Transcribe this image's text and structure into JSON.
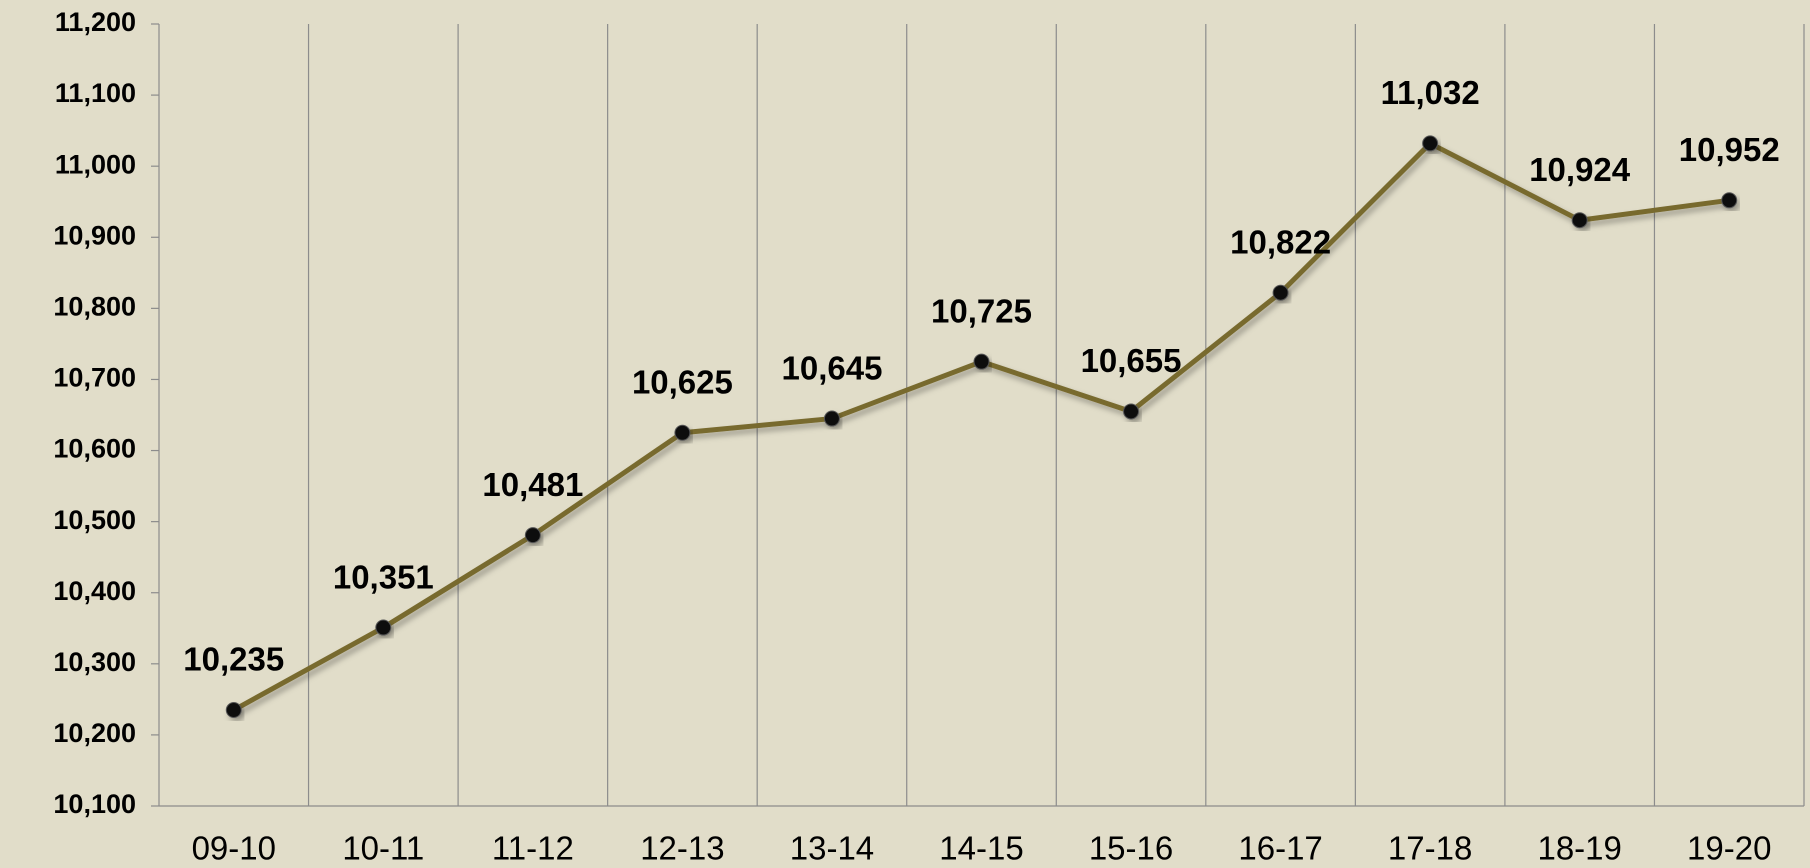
{
  "chart_data": {
    "type": "line",
    "categories": [
      "09-10",
      "10-11",
      "11-12",
      "12-13",
      "13-14",
      "14-15",
      "15-16",
      "16-17",
      "17-18",
      "18-19",
      "19-20"
    ],
    "series": [
      {
        "color": "#786a2f",
        "values": [
          10235,
          10351,
          10481,
          10625,
          10645,
          10725,
          10655,
          10822,
          11032,
          10924,
          10952
        ],
        "value_labels": [
          "10,235",
          "10,351",
          "10,481",
          "10,625",
          "10,645",
          "10,725",
          "10,655",
          "10,822",
          "11,032",
          "10,924",
          "10,952"
        ]
      }
    ],
    "ylim": [
      10100,
      11200
    ],
    "yticks": [
      {
        "value": 10100,
        "label": "10,100"
      },
      {
        "value": 10200,
        "label": "10,200"
      },
      {
        "value": 10300,
        "label": "10,300"
      },
      {
        "value": 10400,
        "label": "10,400"
      },
      {
        "value": 10500,
        "label": "10,500"
      },
      {
        "value": 10600,
        "label": "10,600"
      },
      {
        "value": 10700,
        "label": "10,700"
      },
      {
        "value": 10800,
        "label": "10,800"
      },
      {
        "value": 10900,
        "label": "10,900"
      },
      {
        "value": 11000,
        "label": "11,000"
      },
      {
        "value": 11100,
        "label": "11,100"
      },
      {
        "value": 11200,
        "label": "11,200"
      }
    ]
  }
}
